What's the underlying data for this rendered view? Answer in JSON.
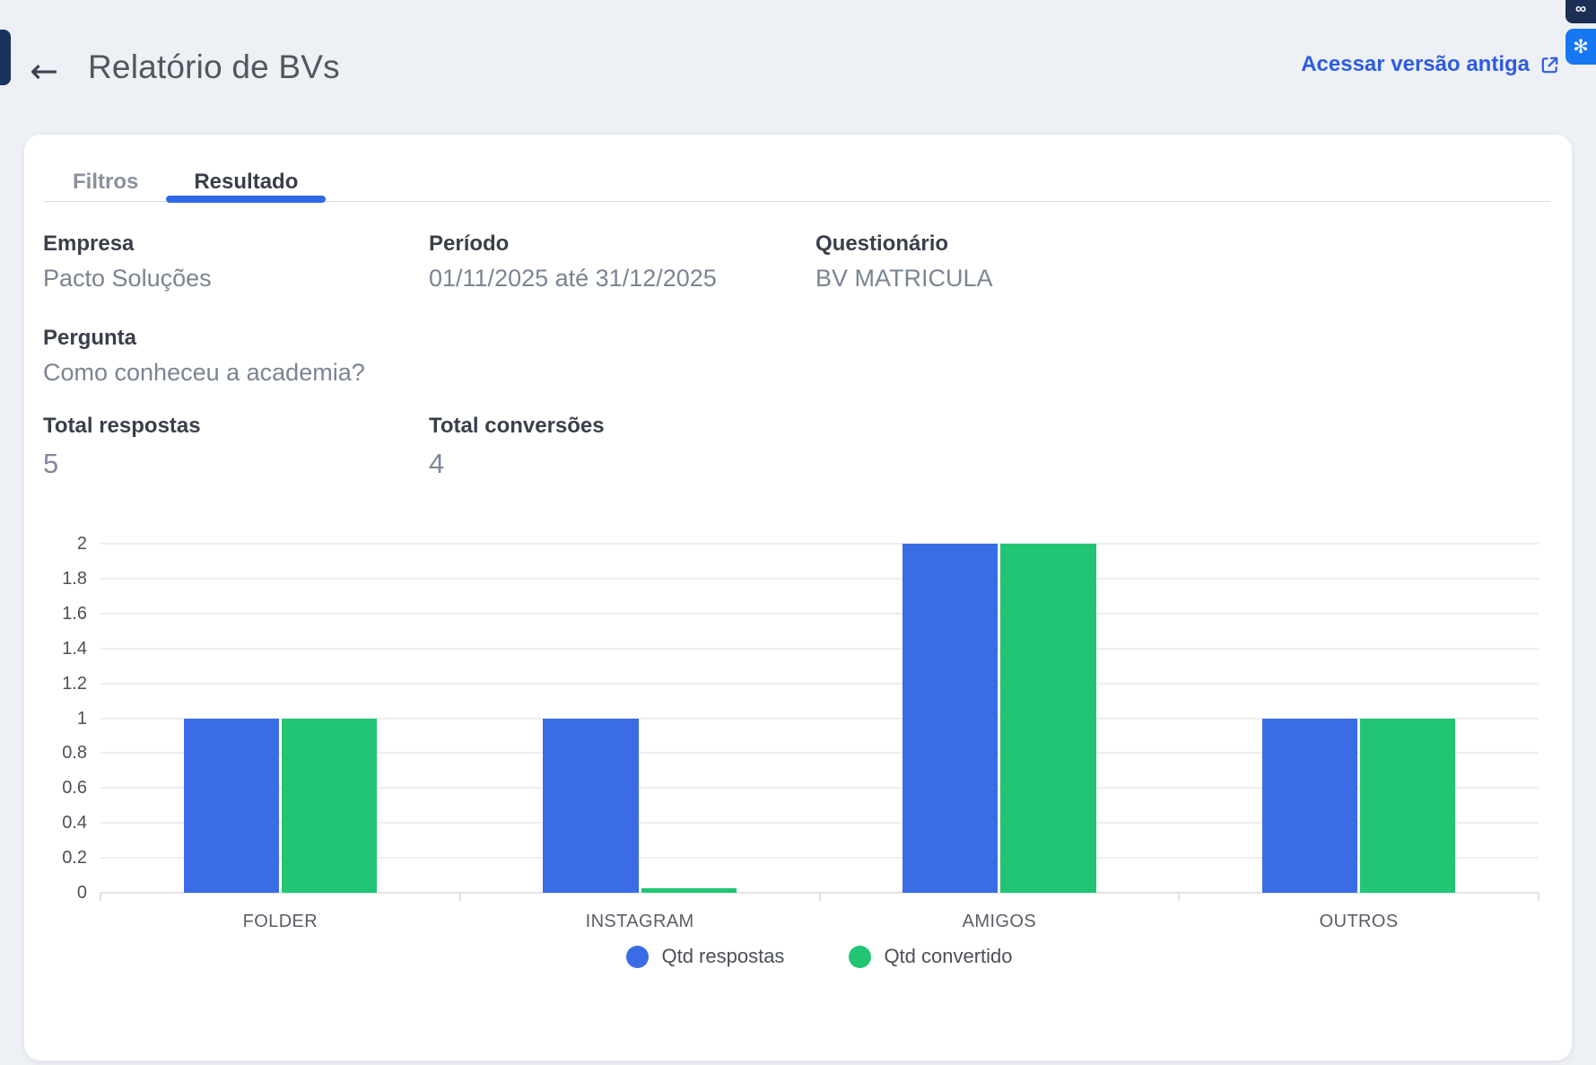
{
  "header": {
    "back_icon": "←",
    "title": "Relatório de BVs",
    "link_label": "Acessar versão antiga"
  },
  "overlays": {
    "top_button_glyph": "∞",
    "chatgpt_button_glyph": "✻"
  },
  "tabs": [
    {
      "label": "Filtros",
      "active": false
    },
    {
      "label": "Resultado",
      "active": true
    }
  ],
  "info": {
    "empresa": {
      "label": "Empresa",
      "value": "Pacto Soluções"
    },
    "periodo": {
      "label": "Período",
      "value": "01/11/2025 até 31/12/2025"
    },
    "questionario": {
      "label": "Questionário",
      "value": "BV MATRICULA"
    },
    "pergunta": {
      "label": "Pergunta",
      "value": "Como conheceu a academia?"
    },
    "total_respostas": {
      "label": "Total respostas",
      "value": "5"
    },
    "total_conversoes": {
      "label": "Total conversões",
      "value": "4"
    }
  },
  "chart_data": {
    "type": "bar",
    "title": "",
    "xlabel": "",
    "ylabel": "",
    "categories": [
      "FOLDER",
      "INSTAGRAM",
      "AMIGOS",
      "OUTROS"
    ],
    "series": [
      {
        "name": "Qtd respostas",
        "color": "#3a6ce6",
        "values": [
          1,
          1,
          2,
          1
        ]
      },
      {
        "name": "Qtd convertido",
        "color": "#22c573",
        "values": [
          1,
          0,
          2,
          1
        ]
      }
    ],
    "ylim": [
      0,
      2
    ],
    "yticks": [
      0,
      0.2,
      0.4,
      0.6,
      0.8,
      1,
      1.2,
      1.4,
      1.6,
      1.8,
      2
    ],
    "grid": true,
    "legend_position": "bottom"
  },
  "colors": {
    "link_blue": "#2d5ce0",
    "tab_underline": "#2e6ae6",
    "bar_blue": "#3a6ce6",
    "bar_green": "#22c573",
    "extension_blue": "#1677f3",
    "navy": "#1d2f55",
    "page_bg": "#edf0f4"
  }
}
